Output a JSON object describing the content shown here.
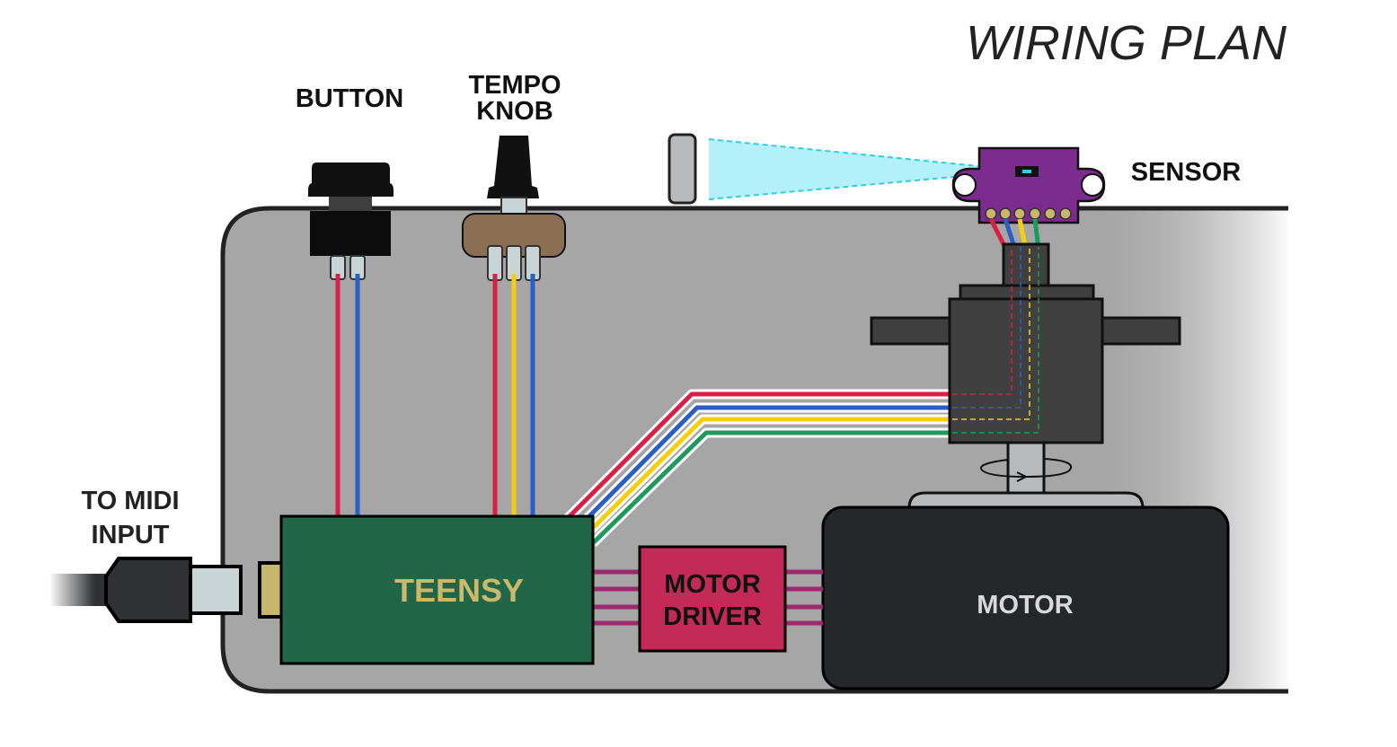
{
  "title": "WIRING PLAN",
  "labels": {
    "button": "BUTTON",
    "tempo_knob": [
      "TEMPO",
      "KNOB"
    ],
    "sensor": "SENSOR",
    "midi_input": [
      "TO MIDI",
      "INPUT"
    ],
    "teensy": "TEENSY",
    "motor_driver": [
      "MOTOR",
      "DRIVER"
    ],
    "motor": "MOTOR"
  },
  "colors": {
    "enclosure": "#a6a6a6",
    "wire_red": "#d81f45",
    "wire_blue": "#2a5fc4",
    "wire_yellow": "#f4cf0d",
    "wire_green": "#1d9a5c",
    "wire_purple": "#9c2a6f",
    "teensy_board": "#226649",
    "teensy_text": "#c9b96b",
    "motor_driver": "#c42a57",
    "motor": "#26272a",
    "sensor_board": "#7b2c8e",
    "knob_body": "#8a6f55",
    "laser_beam": "#b3f0fa"
  },
  "icons": [
    "rotation-arrow-icon"
  ]
}
